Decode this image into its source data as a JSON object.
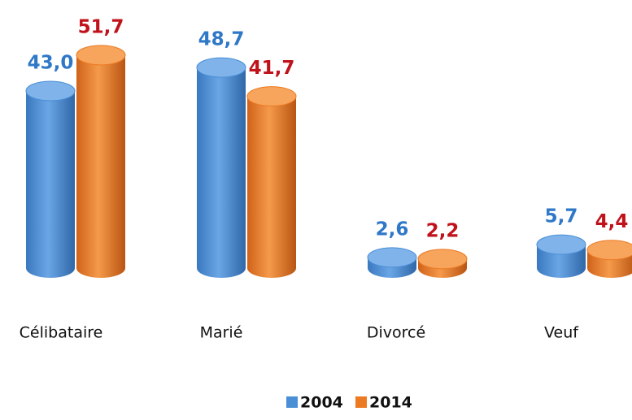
{
  "chart_data": {
    "type": "bar",
    "categories": [
      "Célibataire",
      "Marié",
      "Divorcé",
      "Veuf"
    ],
    "series": [
      {
        "name": "2004",
        "color": "#4a8fd6",
        "label_color": "#2f78c8",
        "values": [
          43.0,
          48.7,
          2.6,
          5.7
        ],
        "value_labels": [
          "43,0",
          "48,7",
          "2,6",
          "5,7"
        ]
      },
      {
        "name": "2014",
        "color": "#ec7a22",
        "label_color": "#c0121b",
        "values": [
          51.7,
          41.7,
          2.2,
          4.4
        ],
        "value_labels": [
          "51,7",
          "41,7",
          "2,2",
          "4,4"
        ]
      }
    ],
    "legend": "bottom"
  }
}
